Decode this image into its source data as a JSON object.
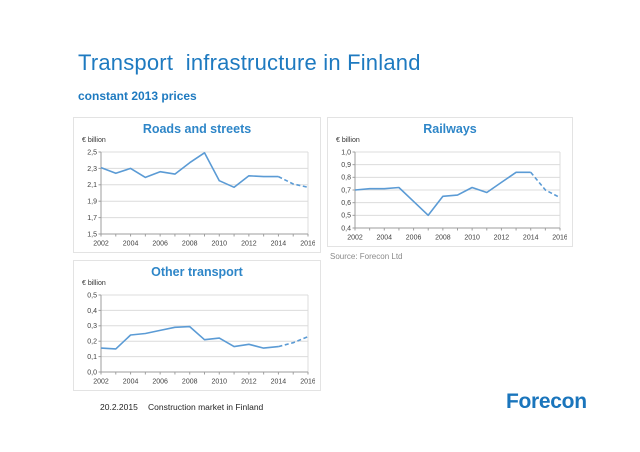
{
  "slide": {
    "title": "Transport  infrastructure in Finland",
    "subtitle": "constant 2013 prices",
    "source": "Source: Forecon Ltd",
    "footer": {
      "date": "20.2.2015",
      "label": "Construction market in Finland"
    },
    "logo": {
      "text": "Forecon"
    }
  },
  "colors": {
    "title_blue": "#1e7ac0",
    "chart_title_blue": "#2e86c8",
    "line_blue": "#5b9bd5",
    "grid": "#dcdcdc",
    "axis": "#9e9e9e",
    "tick_text": "#3f3f3f",
    "logo_blue": "#1a75bc",
    "source_gray": "#8a8a8a"
  },
  "chart_data": [
    {
      "type": "line",
      "title": "Roads and streets",
      "unit_label": "€ billion",
      "x": [
        2002,
        2003,
        2004,
        2005,
        2006,
        2007,
        2008,
        2009,
        2010,
        2011,
        2012,
        2013,
        2014,
        2015,
        2016
      ],
      "values": [
        2.31,
        2.24,
        2.3,
        2.19,
        2.26,
        2.23,
        2.37,
        2.49,
        2.15,
        2.07,
        2.21,
        2.2,
        2.2,
        2.11,
        2.07
      ],
      "solid_until": 2014,
      "forecast_style": "dashed",
      "ylim": [
        1.5,
        2.5
      ],
      "ytick_values": [
        1.5,
        1.7,
        1.9,
        2.1,
        2.3,
        2.5
      ],
      "ytick_labels": [
        "1,5",
        "1,7",
        "1,9",
        "2,1",
        "2,3",
        "2,5"
      ],
      "xtick_labels": [
        "2002",
        "2004",
        "2006",
        "2008",
        "2010",
        "2012",
        "2014",
        "2016"
      ],
      "grid": true,
      "legend": "none",
      "line_color": "#5b9bd5"
    },
    {
      "type": "line",
      "title": "Railways",
      "unit_label": "€ billion",
      "x": [
        2002,
        2003,
        2004,
        2005,
        2006,
        2007,
        2008,
        2009,
        2010,
        2011,
        2012,
        2013,
        2014,
        2015,
        2016
      ],
      "values": [
        0.7,
        0.71,
        0.71,
        0.72,
        0.61,
        0.5,
        0.65,
        0.66,
        0.72,
        0.68,
        0.76,
        0.84,
        0.84,
        0.7,
        0.64
      ],
      "solid_until": 2014,
      "forecast_style": "dashed",
      "ylim": [
        0.4,
        1.0
      ],
      "ytick_values": [
        0.4,
        0.5,
        0.6,
        0.7,
        0.8,
        0.9,
        1.0
      ],
      "ytick_labels": [
        "0,4",
        "0,5",
        "0,6",
        "0,7",
        "0,8",
        "0,9",
        "1,0"
      ],
      "xtick_labels": [
        "2002",
        "2004",
        "2006",
        "2008",
        "2010",
        "2012",
        "2014",
        "2016"
      ],
      "grid": true,
      "legend": "none",
      "line_color": "#5b9bd5"
    },
    {
      "type": "line",
      "title": "Other transport",
      "unit_label": "€ billion",
      "x": [
        2002,
        2003,
        2004,
        2005,
        2006,
        2007,
        2008,
        2009,
        2010,
        2011,
        2012,
        2013,
        2014,
        2015,
        2016
      ],
      "values": [
        0.155,
        0.15,
        0.24,
        0.25,
        0.27,
        0.29,
        0.295,
        0.21,
        0.22,
        0.165,
        0.18,
        0.155,
        0.165,
        0.19,
        0.23
      ],
      "solid_until": 2014,
      "forecast_style": "dashed",
      "ylim": [
        0.0,
        0.5
      ],
      "ytick_values": [
        0.0,
        0.1,
        0.2,
        0.3,
        0.4,
        0.5
      ],
      "ytick_labels": [
        "0,0",
        "0,1",
        "0,2",
        "0,3",
        "0,4",
        "0,5"
      ],
      "xtick_labels": [
        "2002",
        "2004",
        "2006",
        "2008",
        "2010",
        "2012",
        "2014",
        "2016"
      ],
      "grid": true,
      "legend": "none",
      "line_color": "#5b9bd5"
    }
  ]
}
